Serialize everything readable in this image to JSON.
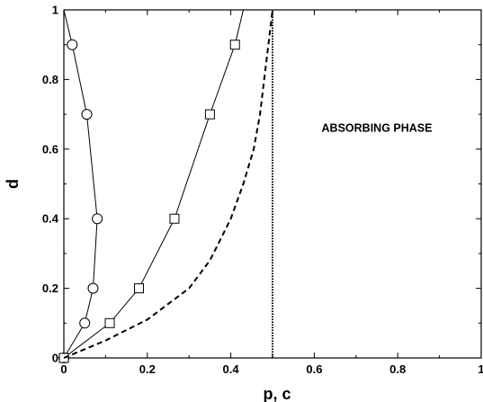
{
  "chart_data": {
    "type": "line",
    "xlabel": "p, c",
    "ylabel": "d",
    "xlim": [
      0,
      1
    ],
    "ylim": [
      0,
      1
    ],
    "x_ticks": [
      "0",
      "0.2",
      "0.4",
      "0.6",
      "0.8",
      "1"
    ],
    "y_ticks": [
      "0",
      "0.2",
      "0.4",
      "0.6",
      "0.8",
      "1"
    ],
    "grid": false,
    "legend": "none",
    "annotations": [
      {
        "text": "ABSORBING PHASE",
        "x": 0.75,
        "y": 0.5
      }
    ],
    "series": [
      {
        "marker": "circle",
        "style": "solid",
        "points": [
          [
            0,
            0
          ],
          [
            0.05,
            0.1
          ],
          [
            0.07,
            0.2
          ],
          [
            0.08,
            0.4
          ],
          [
            0.055,
            0.7
          ],
          [
            0.02,
            0.9
          ]
        ],
        "line_extends_to": [
          0,
          1
        ]
      },
      {
        "marker": "square",
        "style": "solid",
        "points": [
          [
            0,
            0
          ],
          [
            0.11,
            0.1
          ],
          [
            0.18,
            0.2
          ],
          [
            0.265,
            0.4
          ],
          [
            0.35,
            0.7
          ],
          [
            0.41,
            0.9
          ]
        ],
        "line_extends_to": [
          0.43,
          1
        ]
      },
      {
        "marker": "none",
        "style": "dashed",
        "points": [
          [
            0,
            0
          ],
          [
            0.1,
            0.05
          ],
          [
            0.2,
            0.11
          ],
          [
            0.3,
            0.2
          ],
          [
            0.35,
            0.28
          ],
          [
            0.4,
            0.4
          ],
          [
            0.43,
            0.5
          ],
          [
            0.455,
            0.6
          ],
          [
            0.47,
            0.7
          ],
          [
            0.48,
            0.8
          ],
          [
            0.49,
            0.9
          ],
          [
            0.5,
            1
          ]
        ]
      },
      {
        "marker": "none",
        "style": "dotted",
        "points": [
          [
            0.5,
            0
          ],
          [
            0.5,
            1
          ]
        ]
      }
    ]
  }
}
